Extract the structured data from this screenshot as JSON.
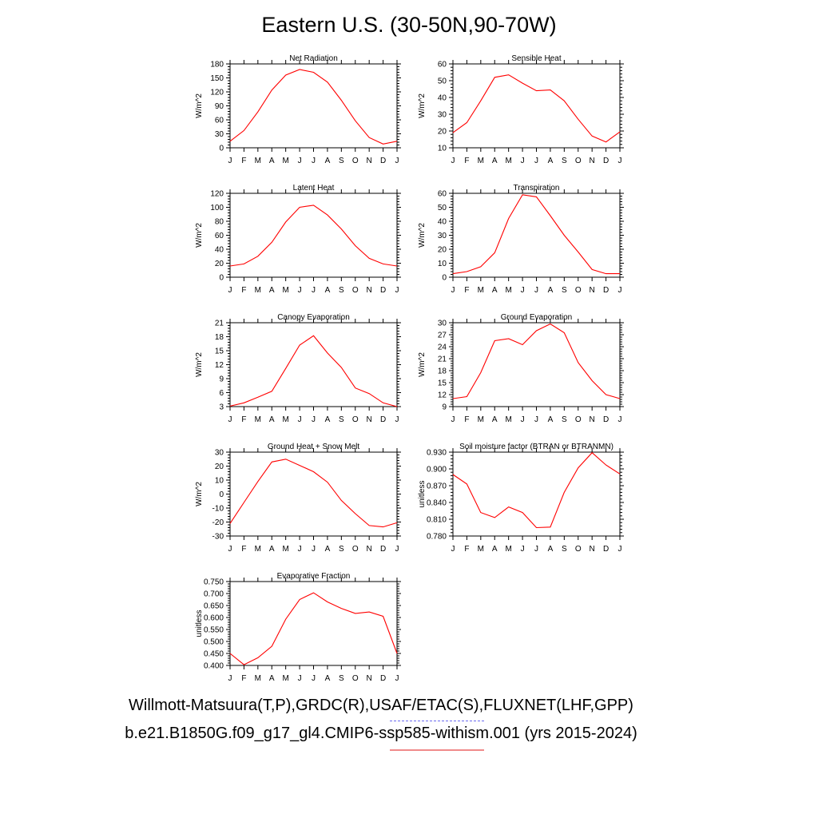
{
  "title": "Eastern U.S. (30-50N,90-70W)",
  "legend": {
    "obs_label": "Willmott-Matsuura(T,P),GRDC(R),USAF/ETAC(S),FLUXNET(LHF,GPP)",
    "model_label": "b.e21.B1850G.f09_g17_gl4.CMIP6-ssp585-withism.001 (yrs 2015-2024)",
    "obs_color": "#6a6af0",
    "model_color": "#f08a8a"
  },
  "colors": {
    "series": "#ff0000",
    "axis": "#000000"
  },
  "chart_data": [
    {
      "type": "line",
      "title": "Net Radiation",
      "ylabel": "W/m^2",
      "categories": [
        "J",
        "F",
        "M",
        "A",
        "M",
        "J",
        "J",
        "A",
        "S",
        "O",
        "N",
        "D",
        "J"
      ],
      "yticks": [
        "0",
        "30",
        "60",
        "90",
        "120",
        "150",
        "180"
      ],
      "ylim": [
        0,
        180
      ],
      "series": [
        {
          "values": [
            14,
            37,
            77,
            124,
            156,
            168,
            162,
            141,
            102,
            58,
            22,
            8,
            14
          ]
        }
      ]
    },
    {
      "type": "line",
      "title": "Sensible Heat",
      "ylabel": "W/m^2",
      "categories": [
        "J",
        "F",
        "M",
        "A",
        "M",
        "J",
        "J",
        "A",
        "S",
        "O",
        "N",
        "D",
        "J"
      ],
      "yticks": [
        "10",
        "20",
        "30",
        "40",
        "50",
        "60"
      ],
      "ylim": [
        10,
        60
      ],
      "series": [
        {
          "values": [
            19,
            25,
            38,
            52,
            53.5,
            48.5,
            44,
            44.5,
            38,
            27,
            17,
            13.5,
            19.5
          ]
        }
      ]
    },
    {
      "type": "line",
      "title": "Latent Heat",
      "ylabel": "W/m^2",
      "categories": [
        "J",
        "F",
        "M",
        "A",
        "M",
        "J",
        "J",
        "A",
        "S",
        "O",
        "N",
        "D",
        "J"
      ],
      "yticks": [
        "0",
        "20",
        "40",
        "60",
        "80",
        "100",
        "120"
      ],
      "ylim": [
        0,
        120
      ],
      "series": [
        {
          "values": [
            16,
            19,
            30,
            50,
            79,
            100,
            103,
            89,
            69,
            45,
            27,
            19,
            16
          ]
        }
      ]
    },
    {
      "type": "line",
      "title": "Transpiration",
      "ylabel": "W/m^2",
      "categories": [
        "J",
        "F",
        "M",
        "A",
        "M",
        "J",
        "J",
        "A",
        "S",
        "O",
        "N",
        "D",
        "J"
      ],
      "yticks": [
        "0",
        "10",
        "20",
        "30",
        "40",
        "50",
        "60"
      ],
      "ylim": [
        0,
        60
      ],
      "series": [
        {
          "values": [
            2.5,
            4,
            7.5,
            17.5,
            42,
            59,
            57.5,
            44,
            30,
            18,
            5.5,
            2.5,
            2.5
          ]
        }
      ]
    },
    {
      "type": "line",
      "title": "Canopy Evaporation",
      "ylabel": "W/m^2",
      "categories": [
        "J",
        "F",
        "M",
        "A",
        "M",
        "J",
        "J",
        "A",
        "S",
        "O",
        "N",
        "D",
        "J"
      ],
      "yticks": [
        "3",
        "6",
        "9",
        "12",
        "15",
        "18",
        "21"
      ],
      "ylim": [
        3,
        21
      ],
      "series": [
        {
          "values": [
            3.1,
            3.8,
            5.0,
            6.3,
            11.2,
            16.2,
            18.2,
            14.5,
            11.4,
            7.0,
            5.8,
            3.8,
            3.0
          ]
        }
      ]
    },
    {
      "type": "line",
      "title": "Ground Evaporation",
      "ylabel": "W/m^2",
      "categories": [
        "J",
        "F",
        "M",
        "A",
        "M",
        "J",
        "J",
        "A",
        "S",
        "O",
        "N",
        "D",
        "J"
      ],
      "yticks": [
        "9",
        "12",
        "15",
        "18",
        "21",
        "24",
        "27",
        "30"
      ],
      "ylim": [
        9,
        30
      ],
      "series": [
        {
          "values": [
            11,
            11.5,
            17.5,
            25.5,
            26,
            24.5,
            28,
            29.7,
            27.5,
            20,
            15.5,
            12,
            11
          ]
        }
      ]
    },
    {
      "type": "line",
      "title": "Ground Heat + Snow Melt",
      "ylabel": "W/m^2",
      "categories": [
        "J",
        "F",
        "M",
        "A",
        "M",
        "J",
        "J",
        "A",
        "S",
        "O",
        "N",
        "D",
        "J"
      ],
      "yticks": [
        "-30",
        "-20",
        "-10",
        "0",
        "10",
        "20",
        "30"
      ],
      "ylim": [
        -30,
        30
      ],
      "series": [
        {
          "values": [
            -21,
            -6,
            9,
            23,
            25,
            20.5,
            16,
            8.5,
            -4.5,
            -14,
            -22.5,
            -23.5,
            -20.5
          ]
        }
      ]
    },
    {
      "type": "line",
      "title": "Soil moisture factor (BTRAN or BTRANMN)",
      "ylabel": "unitless",
      "categories": [
        "J",
        "F",
        "M",
        "A",
        "M",
        "J",
        "J",
        "A",
        "S",
        "O",
        "N",
        "D",
        "J"
      ],
      "yticks": [
        "0.780",
        "0.810",
        "0.840",
        "0.870",
        "0.900",
        "0.930"
      ],
      "ylim": [
        0.78,
        0.93
      ],
      "series": [
        {
          "values": [
            0.89,
            0.873,
            0.822,
            0.813,
            0.832,
            0.822,
            0.795,
            0.796,
            0.858,
            0.902,
            0.929,
            0.907,
            0.891
          ]
        }
      ]
    },
    {
      "type": "line",
      "title": "Evaporative Fraction",
      "ylabel": "unitless",
      "categories": [
        "J",
        "F",
        "M",
        "A",
        "M",
        "J",
        "J",
        "A",
        "S",
        "O",
        "N",
        "D",
        "J"
      ],
      "yticks": [
        "0.400",
        "0.450",
        "0.500",
        "0.550",
        "0.600",
        "0.650",
        "0.700",
        "0.750"
      ],
      "ylim": [
        0.4,
        0.75
      ],
      "series": [
        {
          "values": [
            0.45,
            0.403,
            0.432,
            0.48,
            0.593,
            0.675,
            0.703,
            0.665,
            0.638,
            0.617,
            0.623,
            0.605,
            0.45
          ]
        }
      ]
    }
  ]
}
